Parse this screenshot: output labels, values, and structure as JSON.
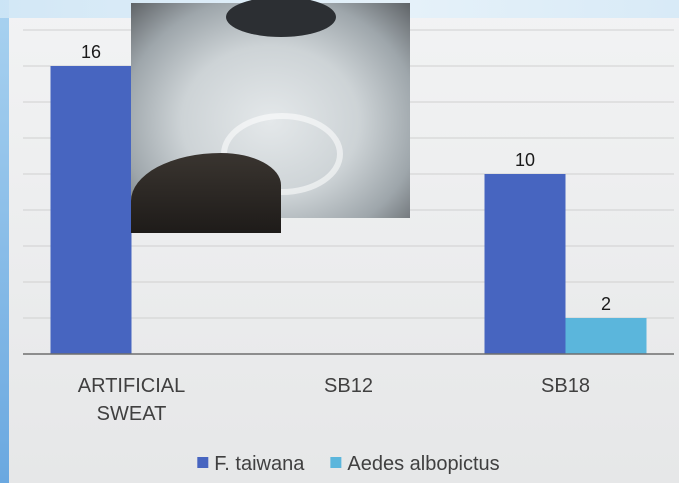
{
  "chart_data": {
    "type": "bar",
    "categories": [
      "ARTIFICIAL SWEAT",
      "SB12",
      "SB18"
    ],
    "series": [
      {
        "name": "F. taiwana",
        "color": "#4765c0",
        "values": [
          16,
          null,
          10
        ]
      },
      {
        "name": "Aedes albopictus",
        "color": "#5bb6dc",
        "values": [
          null,
          null,
          2
        ]
      }
    ],
    "ylim": [
      0,
      18
    ],
    "yticks": [
      0,
      2,
      4,
      6,
      8,
      10,
      12,
      14,
      16,
      18
    ],
    "show_ytick_labels": false,
    "grid": true,
    "legend": "bottom",
    "data_labels": true
  }
}
